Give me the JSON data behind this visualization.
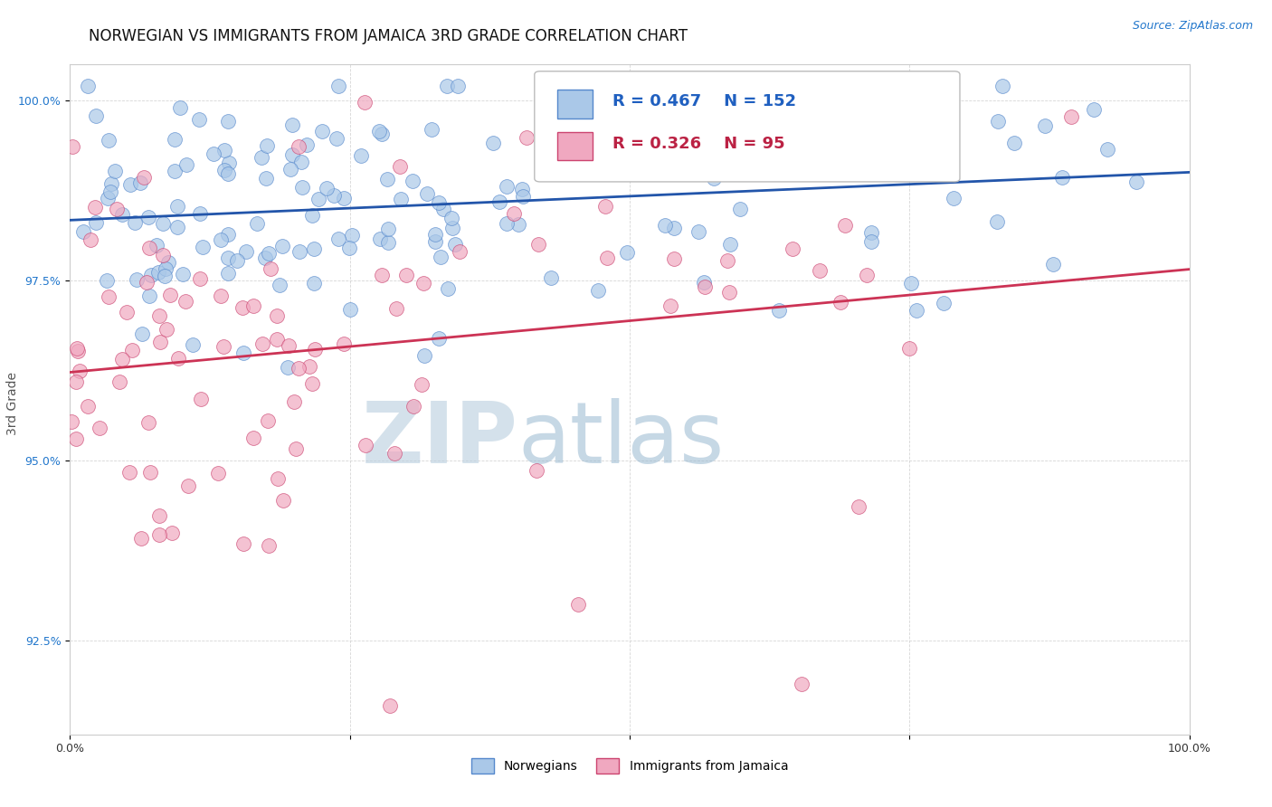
{
  "title": "NORWEGIAN VS IMMIGRANTS FROM JAMAICA 3RD GRADE CORRELATION CHART",
  "source_text": "Source: ZipAtlas.com",
  "ylabel": "3rd Grade",
  "xlim": [
    0.0,
    1.0
  ],
  "ylim": [
    0.912,
    1.005
  ],
  "yticks": [
    0.925,
    0.95,
    0.975,
    1.0
  ],
  "ytick_labels": [
    "92.5%",
    "95.0%",
    "97.5%",
    "100.0%"
  ],
  "xticks": [
    0.0,
    0.25,
    0.5,
    0.75,
    1.0
  ],
  "xtick_labels": [
    "0.0%",
    "",
    "",
    "",
    "100.0%"
  ],
  "norwegian_R": 0.467,
  "norwegian_N": 152,
  "jamaica_R": 0.326,
  "jamaica_N": 95,
  "blue_fill": "#aac8e8",
  "blue_edge": "#5588cc",
  "pink_fill": "#f0a8c0",
  "pink_edge": "#cc4470",
  "blue_line_color": "#2255aa",
  "pink_line_color": "#cc3355",
  "legend_blue_label": "Norwegians",
  "legend_pink_label": "Immigrants from Jamaica",
  "watermark": "ZIPatlas",
  "watermark_color_zip": "#c0d4e8",
  "watermark_color_atlas": "#a8c8d8",
  "background_color": "#ffffff",
  "title_fontsize": 12,
  "axis_label_fontsize": 10,
  "tick_fontsize": 9,
  "source_fontsize": 9
}
